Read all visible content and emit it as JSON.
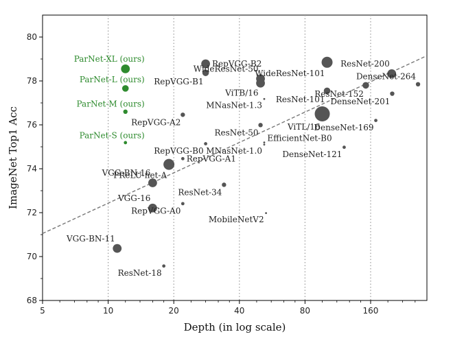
{
  "chart_data": {
    "type": "scatter",
    "title": "",
    "xlabel": "Depth (in log scale)",
    "ylabel": "ImageNet Top1 Acc",
    "xscale": "log2",
    "xlim": [
      5,
      290
    ],
    "ylim": [
      68,
      81
    ],
    "xticks": [
      5,
      10,
      20,
      40,
      80,
      160
    ],
    "yticks": [
      68,
      70,
      72,
      74,
      76,
      78,
      80
    ],
    "vertical_grid_at": [
      10,
      20,
      40,
      80,
      160
    ],
    "highlight_color": "#2e8b2e",
    "marker_color": "#555555",
    "trend_line": {
      "from": [
        5,
        71.05
      ],
      "to": [
        290,
        79.15
      ],
      "style": "dashed",
      "color": "#777777"
    },
    "points": [
      {
        "label": "ParNet-XL (ours)",
        "x": 12,
        "y": 78.55,
        "size": 4,
        "highlight": true,
        "label_pos": "upper-left"
      },
      {
        "label": "ParNet-L (ours)",
        "x": 12,
        "y": 77.66,
        "size": 3,
        "highlight": true,
        "label_pos": "upper-left"
      },
      {
        "label": "ParNet-M (ours)",
        "x": 12,
        "y": 76.6,
        "size": 2,
        "highlight": true,
        "label_pos": "upper-left"
      },
      {
        "label": "ParNet-S (ours)",
        "x": 12,
        "y": 75.19,
        "size": 1,
        "highlight": true,
        "label_pos": "upper-left"
      },
      {
        "label": "RepVGG-B2",
        "x": 28,
        "y": 78.78,
        "size": 4,
        "highlight": false,
        "label_pos": "right"
      },
      {
        "label": "RepVGG-B1",
        "x": 28,
        "y": 78.37,
        "size": 3,
        "highlight": false,
        "label_pos": "lower-left"
      },
      {
        "label": "WideResNet-50",
        "x": 50,
        "y": 78.1,
        "size": 4,
        "highlight": false,
        "label_pos": "upper-left"
      },
      {
        "label": "ViTB/16",
        "x": 50,
        "y": 77.9,
        "size": 4,
        "highlight": false,
        "label_pos": "lower-left"
      },
      {
        "label": "WideResNet-101",
        "x": 101,
        "y": 78.85,
        "size": 5,
        "highlight": false,
        "label_pos": "lower-left"
      },
      {
        "label": "ResNet-200",
        "x": 200,
        "y": 78.33,
        "size": 4,
        "highlight": false,
        "label_pos": "upper-left"
      },
      {
        "label": "DenseNet-264",
        "x": 264,
        "y": 77.85,
        "size": 2,
        "highlight": false,
        "label_pos": "upper-left"
      },
      {
        "label": "ResNet-152",
        "x": 152,
        "y": 77.8,
        "size": 3,
        "highlight": false,
        "label_pos": "lower-left"
      },
      {
        "label": "ResNet-101",
        "x": 101,
        "y": 77.55,
        "size": 3,
        "highlight": false,
        "label_pos": "lower-left"
      },
      {
        "label": "DenseNet-201",
        "x": 201,
        "y": 77.42,
        "size": 2,
        "highlight": false,
        "label_pos": "lower-left"
      },
      {
        "label": "MNasNet-1.3",
        "x": 52,
        "y": 77.18,
        "size": 0,
        "highlight": false,
        "label_pos": "lower-left"
      },
      {
        "label": "RepVGG-A2",
        "x": 22,
        "y": 76.46,
        "size": 2,
        "highlight": false,
        "label_pos": "lower-left"
      },
      {
        "label": "ViTL/16",
        "x": 96,
        "y": 76.5,
        "size": 6,
        "highlight": false,
        "label_pos": "lower-left"
      },
      {
        "label": "DenseNet-169",
        "x": 169,
        "y": 76.2,
        "size": 1,
        "highlight": false,
        "label_pos": "lower-left"
      },
      {
        "label": "ResNet-50",
        "x": 50,
        "y": 75.99,
        "size": 2,
        "highlight": false,
        "label_pos": "lower-left"
      },
      {
        "label": "EfficientNet-B0",
        "x": 52,
        "y": 75.2,
        "size": 0,
        "highlight": false,
        "label_pos": "upper-right"
      },
      {
        "label": "MNasNet-1.0",
        "x": 52,
        "y": 75.1,
        "size": 0,
        "highlight": false,
        "label_pos": "lower-left"
      },
      {
        "label": "RepVGG-B0",
        "x": 28,
        "y": 75.14,
        "size": 1,
        "highlight": false,
        "label_pos": "lower-left"
      },
      {
        "label": "DenseNet-121",
        "x": 121,
        "y": 74.98,
        "size": 1,
        "highlight": false,
        "label_pos": "lower-left"
      },
      {
        "label": "RepVGG-A1",
        "x": 22,
        "y": 74.46,
        "size": 1,
        "highlight": false,
        "label_pos": "right"
      },
      {
        "label": "PReLU-net-A",
        "x": 19,
        "y": 74.2,
        "size": 5,
        "highlight": false,
        "label_pos": "lower-left"
      },
      {
        "label": "VGG-BN-16",
        "x": 16,
        "y": 73.36,
        "size": 4,
        "highlight": false,
        "label_pos": "upper-left"
      },
      {
        "label": "ResNet-34",
        "x": 34,
        "y": 73.27,
        "size": 2,
        "highlight": false,
        "label_pos": "lower-left"
      },
      {
        "label": "VGG-16",
        "x": 16,
        "y": 72.21,
        "size": 4,
        "highlight": false,
        "label_pos": "upper-left"
      },
      {
        "label": "RepVGG-A0",
        "x": 22,
        "y": 72.41,
        "size": 1,
        "highlight": false,
        "label_pos": "lower-left"
      },
      {
        "label": "MobileNetV2",
        "x": 53,
        "y": 71.98,
        "size": 0,
        "highlight": false,
        "label_pos": "lower-left"
      },
      {
        "label": "VGG-BN-11",
        "x": 11,
        "y": 70.37,
        "size": 4,
        "highlight": false,
        "label_pos": "upper-left"
      },
      {
        "label": "ResNet-18",
        "x": 18,
        "y": 69.57,
        "size": 1,
        "highlight": false,
        "label_pos": "lower-left"
      }
    ]
  }
}
